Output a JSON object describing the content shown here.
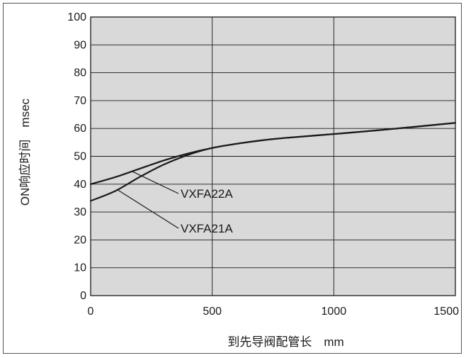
{
  "chart_data": {
    "type": "line",
    "title": "",
    "xlabel": "到先导阀配管长　mm",
    "ylabel": "ON响应时间　msec",
    "xlim": [
      0,
      1500
    ],
    "ylim": [
      0,
      100
    ],
    "xticks": [
      "0",
      "500",
      "1000",
      "1500"
    ],
    "yticks": [
      "0",
      "10",
      "20",
      "30",
      "40",
      "50",
      "60",
      "70",
      "80",
      "90",
      "100"
    ],
    "grid": true,
    "plot_background": "#d9d9d9",
    "line_color": "#1a1a1a",
    "series": [
      {
        "name": "VXFA22A",
        "x": [
          0,
          100,
          200,
          300,
          400,
          500,
          600,
          700,
          800,
          1000,
          1200,
          1500
        ],
        "y": [
          40,
          42.5,
          45.5,
          48.5,
          51,
          53,
          54.5,
          55.7,
          56.6,
          58,
          59.5,
          62
        ]
      },
      {
        "name": "VXFA21A",
        "x": [
          0,
          100,
          200,
          300,
          400,
          500,
          600,
          700,
          800,
          1000,
          1200,
          1500
        ],
        "y": [
          34,
          37.5,
          42.5,
          47,
          50.5,
          53,
          54.5,
          55.7,
          56.6,
          58,
          59.5,
          62
        ]
      }
    ],
    "annotations": [
      {
        "text": "VXFA22A",
        "series": "VXFA22A",
        "at_x": 170
      },
      {
        "text": "VXFA21A",
        "series": "VXFA21A",
        "at_x": 110
      }
    ]
  }
}
